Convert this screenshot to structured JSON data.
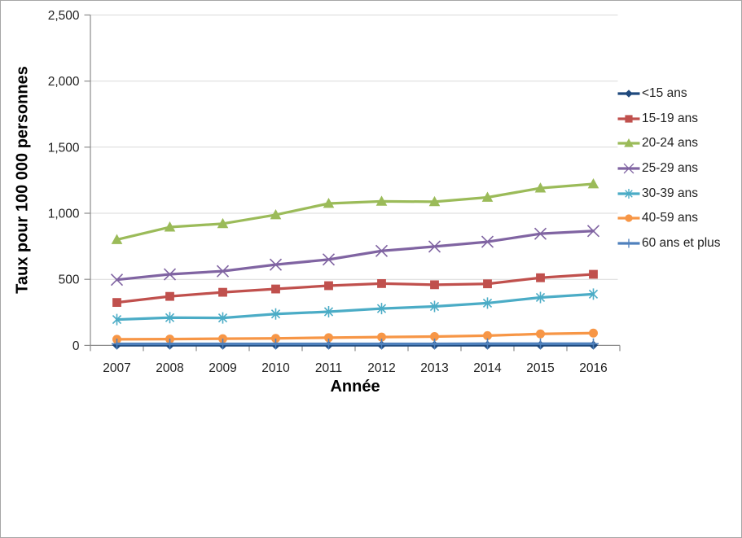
{
  "page": {
    "background": "#ffffff",
    "border_color": "#A6A6A6",
    "axis_color": "#8C8C8C",
    "grid_color": "#D9D9D9",
    "text_color": "#1f1f1f"
  },
  "chart_data": {
    "type": "line",
    "title": "",
    "xlabel": "Année",
    "ylabel": "Taux pour 100 000 personnes",
    "x_categories": [
      "2007",
      "2008",
      "2009",
      "2010",
      "2011",
      "2012",
      "2013",
      "2014",
      "2015",
      "2016"
    ],
    "ylim": [
      0,
      2500
    ],
    "ytick_step": 500,
    "yticks": [
      0,
      500,
      1000,
      1500,
      2000,
      2500
    ],
    "ytick_labels": [
      "0",
      "500",
      "1,000",
      "1,500",
      "2,000",
      "2,500"
    ],
    "grid": "horizontal",
    "legend_position": "right",
    "series": [
      {
        "id": "lt15-ans",
        "name": "<15 ans",
        "color": "#1F497D",
        "marker": "diamond",
        "values": [
          2,
          2,
          2,
          2,
          2,
          2,
          2,
          2,
          2,
          2
        ]
      },
      {
        "id": "15-19-ans",
        "name": "15-19 ans",
        "color": "#C0504D",
        "marker": "square",
        "values": [
          325,
          371,
          402,
          427,
          452,
          468,
          459,
          466,
          512,
          538
        ]
      },
      {
        "id": "20-24-ans",
        "name": "20-24 ans",
        "color": "#9BBB59",
        "marker": "triangle",
        "values": [
          800,
          895,
          921,
          988,
          1074,
          1090,
          1087,
          1120,
          1190,
          1222
        ]
      },
      {
        "id": "25-29-ans",
        "name": "25-29 ans",
        "color": "#8064A2",
        "marker": "x",
        "values": [
          497,
          538,
          562,
          611,
          650,
          715,
          748,
          784,
          845,
          866
        ]
      },
      {
        "id": "30-39-ans",
        "name": "30-39 ans",
        "color": "#4BACC6",
        "marker": "asterisk",
        "values": [
          196,
          210,
          208,
          238,
          255,
          279,
          295,
          320,
          363,
          388
        ]
      },
      {
        "id": "40-59-ans",
        "name": "40-59 ans",
        "color": "#F79646",
        "marker": "circle",
        "values": [
          46,
          48,
          51,
          53,
          59,
          63,
          67,
          74,
          87,
          93
        ]
      },
      {
        "id": "60-ans-et-plus",
        "name": "60 ans et plus",
        "color": "#4F81BD",
        "marker": "plus",
        "values": [
          12,
          12,
          12,
          12,
          12,
          12,
          12,
          13,
          13,
          13
        ]
      }
    ]
  }
}
